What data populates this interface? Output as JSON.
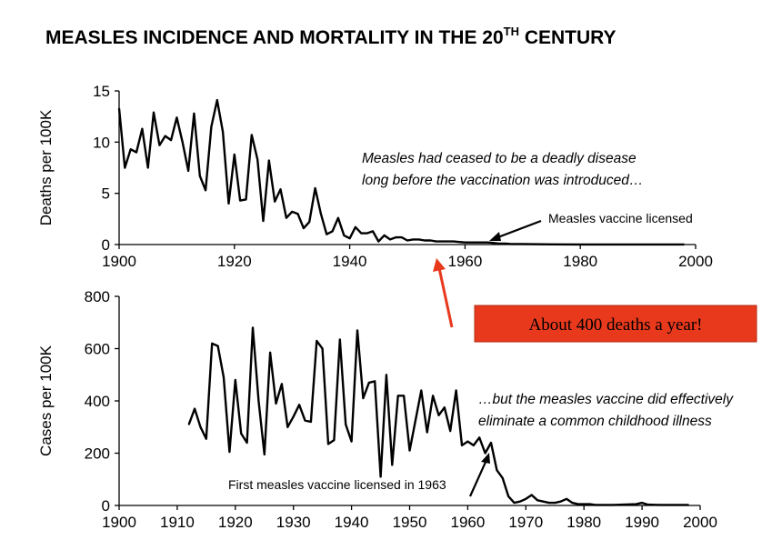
{
  "title": {
    "main": "MEASLES INCIDENCE AND MORTALITY IN THE 20",
    "sup": "TH",
    "rest": " CENTURY"
  },
  "callout": {
    "text": "About 400 deaths a year!",
    "color": "#e8391d"
  },
  "chart_data": [
    {
      "type": "line",
      "name": "mortality",
      "ylabel": "Deaths per 100K",
      "xlim": [
        1900,
        2000
      ],
      "ylim": [
        0,
        15
      ],
      "xticks": [
        1900,
        1920,
        1940,
        1960,
        1980,
        2000
      ],
      "yticks": [
        0,
        5,
        10,
        15
      ],
      "grid": false,
      "annotations": [
        {
          "text_line1": "Measles had ceased to be a deadly disease",
          "text_line2": "long before the vaccination was introduced…"
        },
        {
          "text": "Measles vaccine licensed"
        }
      ],
      "x": [
        1900,
        1901,
        1902,
        1903,
        1904,
        1905,
        1906,
        1907,
        1908,
        1909,
        1910,
        1911,
        1912,
        1913,
        1914,
        1915,
        1916,
        1917,
        1918,
        1919,
        1920,
        1921,
        1922,
        1923,
        1924,
        1925,
        1926,
        1927,
        1928,
        1929,
        1930,
        1931,
        1932,
        1933,
        1934,
        1935,
        1936,
        1937,
        1938,
        1939,
        1940,
        1941,
        1942,
        1943,
        1944,
        1945,
        1946,
        1947,
        1948,
        1949,
        1950,
        1951,
        1952,
        1953,
        1954,
        1955,
        1956,
        1957,
        1958,
        1959,
        1960,
        1961,
        1962,
        1963,
        1964,
        1965,
        1966,
        1967,
        1968,
        1970,
        1975,
        1980,
        1985,
        1990,
        1995,
        1998
      ],
      "y": [
        13.3,
        7.5,
        9.3,
        9.0,
        11.3,
        7.5,
        12.9,
        9.7,
        10.6,
        10.2,
        12.4,
        10.0,
        7.2,
        12.8,
        6.7,
        5.3,
        11.5,
        14.1,
        11.0,
        4.0,
        8.8,
        4.3,
        4.4,
        10.7,
        8.3,
        2.3,
        8.2,
        4.2,
        5.4,
        2.6,
        3.2,
        3.0,
        1.6,
        2.2,
        5.5,
        3.0,
        1.0,
        1.3,
        2.6,
        0.9,
        0.6,
        1.7,
        1.1,
        1.1,
        1.3,
        0.3,
        0.9,
        0.5,
        0.7,
        0.7,
        0.4,
        0.5,
        0.5,
        0.4,
        0.4,
        0.3,
        0.3,
        0.3,
        0.3,
        0.25,
        0.2,
        0.2,
        0.2,
        0.2,
        0.2,
        0.15,
        0.1,
        0.1,
        0.05,
        0.05,
        0.02,
        0.01,
        0.01,
        0.01,
        0.01,
        0.01
      ]
    },
    {
      "type": "line",
      "name": "incidence",
      "ylabel": "Cases  per 100K",
      "xlim": [
        1900,
        2000
      ],
      "ylim": [
        0,
        800
      ],
      "xticks": [
        1900,
        1910,
        1920,
        1930,
        1940,
        1950,
        1960,
        1970,
        1980,
        1990,
        2000
      ],
      "yticks": [
        0,
        200,
        400,
        600,
        800
      ],
      "grid": false,
      "annotations": [
        {
          "text_line1": "…but the measles vaccine did effectively",
          "text_line2": "eliminate a common childhood illness"
        },
        {
          "text": "First measles vaccine  licensed in 1963"
        }
      ],
      "x": [
        1912,
        1913,
        1914,
        1915,
        1916,
        1917,
        1918,
        1919,
        1920,
        1921,
        1922,
        1923,
        1924,
        1925,
        1926,
        1927,
        1928,
        1929,
        1930,
        1931,
        1932,
        1933,
        1934,
        1935,
        1936,
        1937,
        1938,
        1939,
        1940,
        1941,
        1942,
        1943,
        1944,
        1945,
        1946,
        1947,
        1948,
        1949,
        1950,
        1951,
        1952,
        1953,
        1954,
        1955,
        1956,
        1957,
        1958,
        1959,
        1960,
        1961,
        1962,
        1963,
        1964,
        1965,
        1966,
        1967,
        1968,
        1969,
        1970,
        1971,
        1972,
        1973,
        1974,
        1975,
        1976,
        1977,
        1978,
        1979,
        1980,
        1981,
        1982,
        1985,
        1989,
        1990,
        1991,
        1993,
        1998
      ],
      "y": [
        310,
        370,
        300,
        255,
        620,
        610,
        490,
        205,
        480,
        275,
        240,
        680,
        400,
        195,
        585,
        390,
        465,
        300,
        340,
        385,
        325,
        320,
        630,
        600,
        235,
        250,
        635,
        310,
        245,
        670,
        410,
        470,
        475,
        110,
        500,
        155,
        420,
        420,
        210,
        325,
        440,
        280,
        420,
        345,
        375,
        285,
        440,
        230,
        245,
        230,
        260,
        200,
        240,
        135,
        105,
        35,
        10,
        15,
        25,
        40,
        20,
        15,
        10,
        10,
        15,
        25,
        10,
        5,
        5,
        5,
        2,
        2,
        5,
        10,
        3,
        2,
        2
      ]
    }
  ]
}
